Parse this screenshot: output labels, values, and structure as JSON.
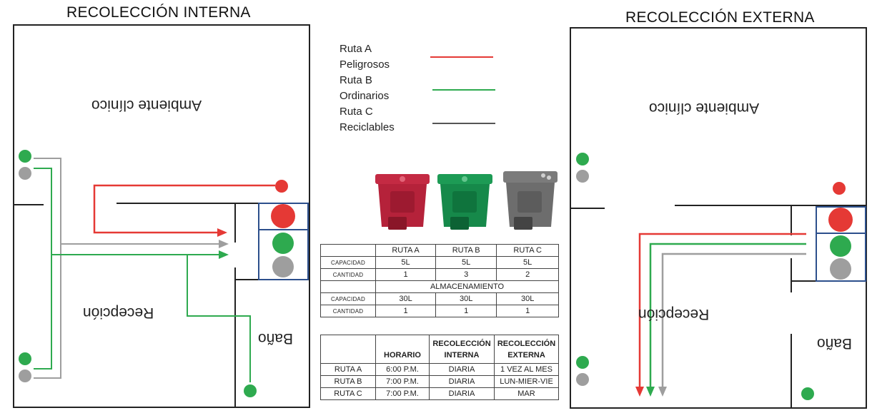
{
  "titles": {
    "internal": "RECOLECCIÓN INTERNA",
    "external": "RECOLECCIÓN EXTERNA"
  },
  "rooms": {
    "clinic": "Ambiente clínico",
    "reception": "Recepción",
    "bathroom": "Baño"
  },
  "legend": [
    {
      "route": "Ruta A",
      "type": "Peligrosos",
      "color": "#e53935"
    },
    {
      "route": "Ruta B",
      "type": "Ordinarios",
      "color": "#2eaa4f"
    },
    {
      "route": "Ruta C",
      "type": "Reciclables",
      "color": "#555555"
    }
  ],
  "bins": [
    {
      "name": "red-bin",
      "color": "#b5223a"
    },
    {
      "name": "green-bin",
      "color": "#16894a"
    },
    {
      "name": "gray-bin",
      "color": "#6d6d6d"
    }
  ],
  "capacity_table": {
    "headers": [
      "",
      "RUTA A",
      "RUTA B",
      "RUTA C"
    ],
    "rows": [
      [
        "CAPACIDAD",
        "5L",
        "5L",
        "5L"
      ],
      [
        "CANTIDAD",
        "1",
        "3",
        "2"
      ]
    ],
    "storage_label": "ALMACENAMIENTO",
    "storage_rows": [
      [
        "CAPACIDAD",
        "30L",
        "30L",
        "30L"
      ],
      [
        "CANTIDAD",
        "1",
        "1",
        "1"
      ]
    ]
  },
  "schedule_table": {
    "headers": [
      "",
      "HORARIO",
      "RECOLECCIÓN INTERNA",
      "RECOLECCIÓN EXTERNA"
    ],
    "rows": [
      [
        "RUTA A",
        "6:00 P.M.",
        "DIARIA",
        "1 VEZ AL MES"
      ],
      [
        "RUTA B",
        "7:00 P.M.",
        "DIARIA",
        "LUN-MIER-VIE"
      ],
      [
        "RUTA C",
        "7:00 P.M.",
        "DIARIA",
        "MAR"
      ]
    ]
  },
  "colors": {
    "red": "#e53935",
    "green": "#2eaa4f",
    "gray": "#9e9e9e",
    "darkgray": "#555555",
    "blue": "#2c4f8c"
  }
}
